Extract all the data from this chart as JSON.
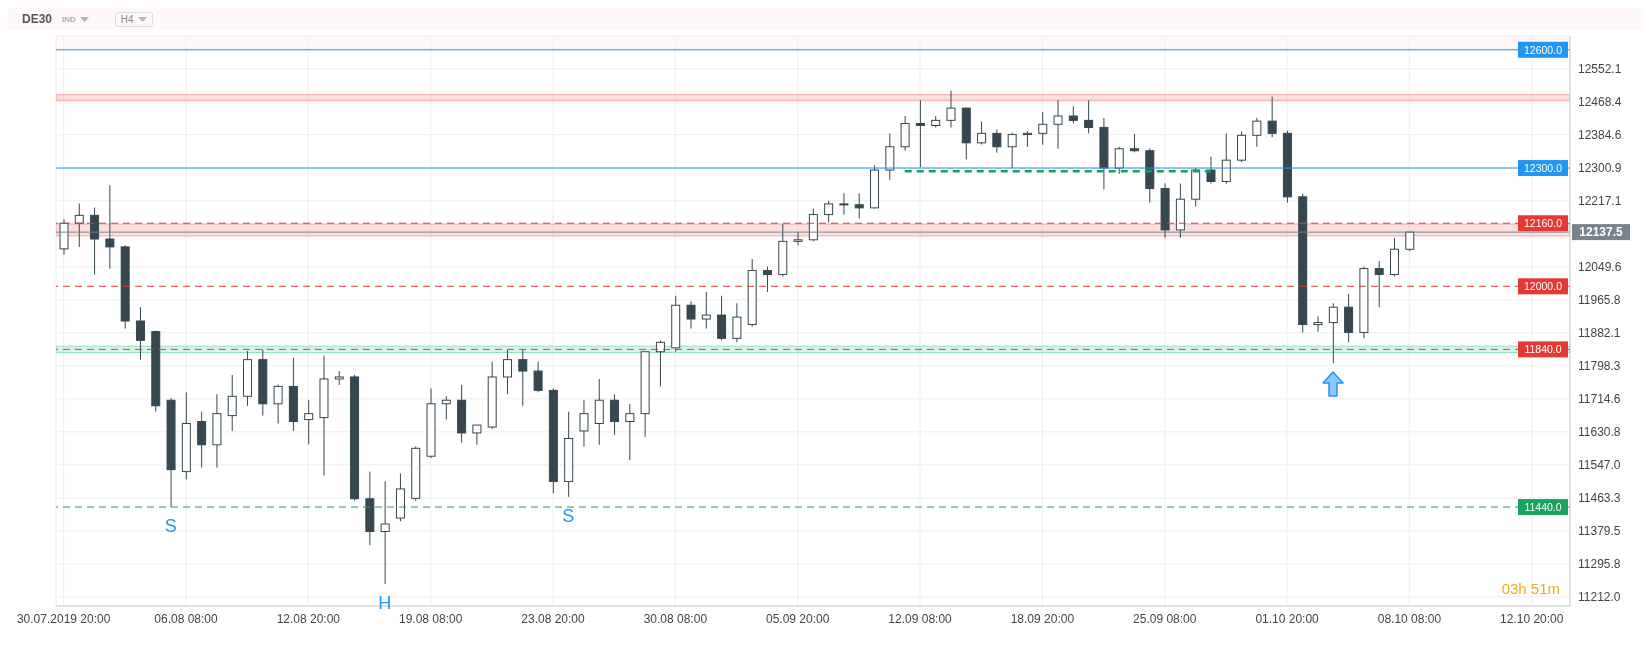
{
  "chart_data": {
    "type": "candlestick",
    "title": "DE30",
    "annotations": [
      "IND",
      "H4",
      "03h 51m",
      {
        "text": "S",
        "y": 11440
      },
      {
        "text": "H",
        "y": 11245
      },
      {
        "text": "S",
        "y": 11466
      }
    ],
    "categories": [
      "30.07.2019 20:00",
      null,
      null,
      null,
      null,
      null,
      null,
      null,
      "06.08 08:00",
      null,
      null,
      null,
      null,
      null,
      null,
      null,
      "12.08 20:00",
      null,
      null,
      null,
      null,
      null,
      null,
      null,
      "19.08 08:00",
      null,
      null,
      null,
      null,
      null,
      null,
      null,
      "23.08 20:00",
      null,
      null,
      null,
      null,
      null,
      null,
      null,
      "30.08 08:00",
      null,
      null,
      null,
      null,
      null,
      null,
      null,
      "05.09 20:00",
      null,
      null,
      null,
      null,
      null,
      null,
      null,
      "12.09 08:00",
      null,
      null,
      null,
      null,
      null,
      null,
      null,
      "18.09 20:00",
      null,
      null,
      null,
      null,
      null,
      null,
      null,
      "25.09 08:00",
      null,
      null,
      null,
      null,
      null,
      null,
      null,
      "01.10 20:00",
      null,
      null,
      null,
      null,
      null,
      null,
      null,
      "08.10 08:00",
      null,
      null,
      null,
      null,
      null,
      null,
      null,
      "12.10 20:00",
      null,
      null
    ],
    "ohlc": [
      [
        12095,
        12170,
        12080,
        12160
      ],
      [
        12160,
        12210,
        12100,
        12180
      ],
      [
        12180,
        12200,
        12030,
        12120
      ],
      [
        12120,
        12256,
        12045,
        12100
      ],
      [
        12100,
        12104,
        11893,
        11912
      ],
      [
        11912,
        11947,
        11814,
        11863
      ],
      [
        11885,
        11888,
        11682,
        11697
      ],
      [
        11711,
        11716,
        11440,
        11535
      ],
      [
        11530,
        11731,
        11510,
        11652
      ],
      [
        11657,
        11682,
        11540,
        11598
      ],
      [
        11598,
        11726,
        11540,
        11677
      ],
      [
        11672,
        11775,
        11633,
        11721
      ],
      [
        11721,
        11836,
        11697,
        11814
      ],
      [
        11814,
        11839,
        11672,
        11702
      ],
      [
        11702,
        11751,
        11652,
        11746
      ],
      [
        11746,
        11819,
        11633,
        11657
      ],
      [
        11662,
        11711,
        11599,
        11677
      ],
      [
        11667,
        11824,
        11520,
        11765
      ],
      [
        11765,
        11785,
        11750,
        11770
      ],
      [
        11770,
        11775,
        11456,
        11461
      ],
      [
        11461,
        11530,
        11343,
        11378
      ],
      [
        11378,
        11505,
        11245,
        11397
      ],
      [
        11412,
        11525,
        11404,
        11486
      ],
      [
        11462,
        11594,
        11456,
        11589
      ],
      [
        11569,
        11741,
        11564,
        11702
      ],
      [
        11702,
        11721,
        11662,
        11711
      ],
      [
        11711,
        11750,
        11603,
        11628
      ],
      [
        11628,
        11648,
        11598,
        11648
      ],
      [
        11643,
        11809,
        11638,
        11770
      ],
      [
        11770,
        11839,
        11726,
        11814
      ],
      [
        11814,
        11839,
        11697,
        11785
      ],
      [
        11785,
        11809,
        11731,
        11736
      ],
      [
        11736,
        11741,
        11475,
        11505
      ],
      [
        11505,
        11682,
        11466,
        11614
      ],
      [
        11633,
        11711,
        11593,
        11677
      ],
      [
        11652,
        11765,
        11598,
        11711
      ],
      [
        11711,
        11726,
        11623,
        11657
      ],
      [
        11657,
        11701,
        11559,
        11677
      ],
      [
        11677,
        11834,
        11618,
        11834
      ],
      [
        11834,
        11863,
        11746,
        11858
      ],
      [
        11844,
        11976,
        11834,
        11952
      ],
      [
        11952,
        11962,
        11893,
        11917
      ],
      [
        11917,
        11986,
        11893,
        11927
      ],
      [
        11927,
        11976,
        11863,
        11868
      ],
      [
        11868,
        11957,
        11858,
        11922
      ],
      [
        11903,
        12069,
        11898,
        12040
      ],
      [
        12040,
        12050,
        11986,
        12030
      ],
      [
        12030,
        12158,
        12025,
        12114
      ],
      [
        12114,
        12138,
        12104,
        12118
      ],
      [
        12118,
        12197,
        12114,
        12182
      ],
      [
        12182,
        12217,
        12162,
        12209
      ],
      [
        12209,
        12236,
        12182,
        12207
      ],
      [
        12207,
        12236,
        12172,
        12199
      ],
      [
        12199,
        12307,
        12197,
        12295
      ],
      [
        12295,
        12388,
        12270,
        12354
      ],
      [
        12354,
        12432,
        12344,
        12413
      ],
      [
        12413,
        12472,
        12302,
        12408
      ],
      [
        12408,
        12432,
        12403,
        12421
      ],
      [
        12421,
        12496,
        12403,
        12452
      ],
      [
        12452,
        12454,
        12322,
        12364
      ],
      [
        12364,
        12418,
        12360,
        12388
      ],
      [
        12388,
        12398,
        12339,
        12354
      ],
      [
        12354,
        12390,
        12300,
        12385
      ],
      [
        12385,
        12393,
        12354,
        12388
      ],
      [
        12388,
        12442,
        12359,
        12411
      ],
      [
        12411,
        12472,
        12349,
        12432
      ],
      [
        12432,
        12457,
        12413,
        12421
      ],
      [
        12421,
        12472,
        12388,
        12403
      ],
      [
        12403,
        12427,
        12246,
        12300
      ],
      [
        12300,
        12354,
        12285,
        12349
      ],
      [
        12349,
        12386,
        12340,
        12344
      ],
      [
        12344,
        12350,
        12212,
        12248
      ],
      [
        12248,
        12261,
        12123,
        12143
      ],
      [
        12143,
        12261,
        12123,
        12221
      ],
      [
        12221,
        12300,
        12202,
        12295
      ],
      [
        12295,
        12329,
        12261,
        12266
      ],
      [
        12266,
        12388,
        12260,
        12320
      ],
      [
        12320,
        12393,
        12315,
        12383
      ],
      [
        12383,
        12427,
        12354,
        12419
      ],
      [
        12419,
        12481,
        12378,
        12388
      ],
      [
        12388,
        12395,
        12212,
        12227
      ],
      [
        12227,
        12235,
        11883,
        11903
      ],
      [
        11903,
        11924,
        11885,
        11908
      ],
      [
        11908,
        11957,
        11805,
        11947
      ],
      [
        11947,
        11981,
        11858,
        11883
      ],
      [
        11883,
        12050,
        11868,
        12045
      ],
      [
        12045,
        12064,
        11947,
        12030
      ],
      [
        12030,
        12123,
        12025,
        12094
      ],
      [
        12094,
        12138,
        12089,
        12137.5
      ],
      null,
      null,
      null,
      null,
      null,
      null,
      null,
      null,
      null,
      null
    ],
    "series": [
      {
        "type": "line",
        "color": "#18a058",
        "line_style": "dashed",
        "values": [
          null,
          null,
          null,
          null,
          null,
          null,
          null,
          null,
          null,
          null,
          null,
          null,
          null,
          null,
          null,
          null,
          null,
          null,
          null,
          null,
          null,
          null,
          null,
          null,
          null,
          null,
          null,
          null,
          null,
          null,
          null,
          null,
          null,
          null,
          null,
          null,
          null,
          null,
          null,
          null,
          null,
          null,
          null,
          null,
          null,
          null,
          null,
          null,
          null,
          null,
          null,
          null,
          null,
          null,
          null,
          12292,
          12292,
          12292,
          12292,
          12292,
          12292,
          12292,
          12292,
          12292,
          12292,
          12292,
          12292,
          12292,
          12292,
          12292,
          12292,
          12292,
          12292,
          12292,
          12292,
          12292,
          null,
          null,
          null,
          null,
          null,
          null,
          null,
          null,
          null,
          null,
          null,
          null,
          null,
          null,
          null,
          null,
          null,
          null,
          null,
          null,
          null,
          null,
          null
        ]
      }
    ],
    "ylim": [
      11189,
      12635
    ],
    "yticks": [
      12552.1,
      12468.4,
      12384.6,
      12300.9,
      12217.1,
      12049.6,
      11965.8,
      11882.1,
      11798.3,
      11714.6,
      11630.8,
      {
        "value": 11547,
        "label": "11547.0"
      },
      11463.3,
      11379.5,
      11295.8,
      {
        "value": 11212,
        "label": "11212.0"
      }
    ],
    "grid": true,
    "ref_lines": [
      {
        "axis": "y",
        "value": 12600,
        "label": "12600.0",
        "color": "#2196f3",
        "line_style": "solid"
      },
      {
        "axis": "y",
        "value": 12300,
        "label": "12300.0",
        "color": "#2196f3",
        "line_style": "solid"
      },
      {
        "axis": "y",
        "value": 12160,
        "label": "12160.0",
        "color": "#e53935",
        "line_style": "dashed"
      },
      {
        "axis": "y",
        "value": 12000,
        "label": "12000.0",
        "color": "#e53935",
        "line_style": "dashed"
      },
      {
        "axis": "y",
        "value": 11840,
        "label": "11840.0",
        "color": "#e53935",
        "line_style": "dashed"
      },
      {
        "axis": "y",
        "value": 11440,
        "label": "11440.0",
        "color": "#1aa260",
        "line_style": "dashed"
      },
      {
        "axis": "y",
        "value": 12137.5,
        "label": "12137.5",
        "color": "#78838c",
        "line_style": "solid"
      }
    ],
    "bands": [
      {
        "axis": "y",
        "from": 12600,
        "to": 12635,
        "color": "#fdecec"
      },
      {
        "axis": "y",
        "from": 12472,
        "to": 12486,
        "color": "#f4a5a5"
      },
      {
        "axis": "y",
        "from": 12128,
        "to": 12158,
        "color": "#f4a5a5"
      },
      {
        "axis": "y",
        "from": 11832,
        "to": 11848,
        "color": "#8fe0c0"
      }
    ]
  }
}
